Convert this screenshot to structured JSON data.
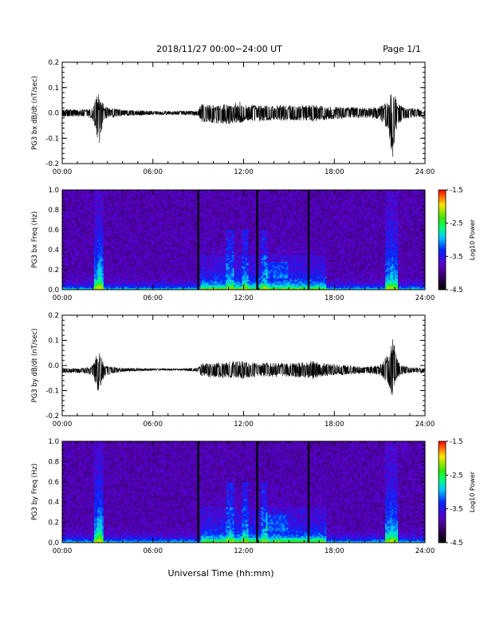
{
  "header": {
    "title": "2018/11/27  00:00−24:00 UT",
    "page": "Page 1/1"
  },
  "footer": {
    "xlabel": "Universal Time (hh:mm)"
  },
  "chart_data": [
    {
      "type": "line",
      "ylabel": "PG3 bx dB/dt (nT/sec)",
      "ylim": [
        -0.2,
        0.2
      ],
      "yticks": [
        "0.2",
        "0.1",
        "0.0",
        "-0.1",
        "-0.2"
      ],
      "xlim": [
        0,
        24
      ],
      "xticks": [
        "00:00",
        "06:00",
        "12:00",
        "18:00",
        "24:00"
      ],
      "series": [
        {
          "x": [
            0,
            1.5,
            2.0,
            2.2,
            2.4,
            2.6,
            2.8,
            3.2,
            4,
            6,
            8,
            9.0,
            9.2,
            10,
            11,
            11.8,
            12.2,
            13,
            14,
            15,
            16.3,
            16.6,
            17,
            18,
            19,
            20,
            21.0,
            21.6,
            21.8,
            22.0,
            22.2,
            22.5,
            23,
            24
          ],
          "y": [
            0.015,
            0.015,
            0.02,
            0.055,
            0.09,
            0.06,
            0.025,
            0.02,
            0.012,
            0.008,
            0.008,
            0.01,
            0.035,
            0.03,
            0.035,
            0.045,
            0.035,
            0.03,
            0.03,
            0.03,
            0.03,
            0.04,
            0.03,
            0.025,
            0.025,
            0.02,
            0.025,
            0.05,
            0.1,
            0.07,
            0.04,
            0.025,
            0.02,
            0.015
          ],
          "ymin": [
            -0.015,
            -0.015,
            -0.025,
            -0.06,
            -0.17,
            -0.08,
            -0.03,
            -0.02,
            -0.012,
            -0.008,
            -0.008,
            -0.012,
            -0.035,
            -0.04,
            -0.045,
            -0.04,
            -0.03,
            -0.035,
            -0.03,
            -0.03,
            -0.03,
            -0.035,
            -0.03,
            -0.025,
            -0.02,
            -0.02,
            -0.025,
            -0.07,
            -0.21,
            -0.1,
            -0.05,
            -0.03,
            -0.02,
            -0.015
          ]
        }
      ]
    },
    {
      "type": "heatmap",
      "ylabel": "PG3 bx Freq (Hz)",
      "ylim": [
        0.0,
        1.0
      ],
      "yticks": [
        "1.0",
        "0.8",
        "0.6",
        "0.4",
        "0.2",
        "0.0"
      ],
      "xlim": [
        0,
        24
      ],
      "xticks": [
        "00:00",
        "06:00",
        "12:00",
        "18:00",
        "24:00"
      ],
      "colorbar": {
        "label": "Log10 Power",
        "ticks": [
          "-1.5",
          "-2.5",
          "-3.5",
          "-4.5"
        ],
        "range": [
          -4.5,
          -1.5
        ]
      },
      "data_gaps_hours": [
        9.0,
        12.9,
        16.3
      ],
      "enhanced_bands_hours": [
        [
          2.1,
          2.7
        ],
        [
          9.2,
          17.5
        ],
        [
          21.4,
          22.2
        ]
      ]
    },
    {
      "type": "line",
      "ylabel": "PG3 by dB/dt (nT/sec)",
      "ylim": [
        -0.2,
        0.2
      ],
      "yticks": [
        "0.2",
        "0.1",
        "0.0",
        "-0.1",
        "-0.2"
      ],
      "xlim": [
        0,
        24
      ],
      "xticks": [
        "00:00",
        "06:00",
        "12:00",
        "18:00",
        "24:00"
      ],
      "series": [
        {
          "x": [
            0,
            1.5,
            2.0,
            2.2,
            2.4,
            2.6,
            2.8,
            3.2,
            4,
            6,
            8,
            9.0,
            9.2,
            10,
            11,
            11.8,
            12.2,
            13,
            14,
            15,
            16.3,
            16.6,
            17,
            18,
            19,
            20,
            21.0,
            21.6,
            21.8,
            22.0,
            22.2,
            22.5,
            23,
            24
          ],
          "y": [
            -0.01,
            -0.01,
            0.0,
            0.03,
            0.065,
            0.04,
            0.0,
            -0.005,
            -0.01,
            -0.012,
            -0.012,
            -0.01,
            0.01,
            0.01,
            0.015,
            0.02,
            0.015,
            0.01,
            0.01,
            0.01,
            0.015,
            0.02,
            0.01,
            0.005,
            0.0,
            -0.005,
            0.0,
            0.05,
            0.12,
            0.08,
            0.02,
            0.0,
            -0.008,
            -0.01
          ],
          "ymin": [
            -0.03,
            -0.03,
            -0.04,
            -0.07,
            -0.11,
            -0.08,
            -0.045,
            -0.035,
            -0.025,
            -0.02,
            -0.02,
            -0.025,
            -0.045,
            -0.05,
            -0.05,
            -0.055,
            -0.05,
            -0.045,
            -0.045,
            -0.045,
            -0.05,
            -0.055,
            -0.045,
            -0.04,
            -0.035,
            -0.03,
            -0.04,
            -0.08,
            -0.13,
            -0.09,
            -0.05,
            -0.035,
            -0.03,
            -0.03
          ]
        }
      ]
    },
    {
      "type": "heatmap",
      "ylabel": "PG3 by Freq (Hz)",
      "ylim": [
        0.0,
        1.0
      ],
      "yticks": [
        "1.0",
        "0.8",
        "0.6",
        "0.4",
        "0.2",
        "0.0"
      ],
      "xlim": [
        0,
        24
      ],
      "xticks": [
        "00:00",
        "06:00",
        "12:00",
        "18:00",
        "24:00"
      ],
      "colorbar": {
        "label": "Log10 Power",
        "ticks": [
          "-1.5",
          "-2.5",
          "-3.5",
          "-4.5"
        ],
        "range": [
          -4.5,
          -1.5
        ]
      },
      "data_gaps_hours": [
        9.0,
        12.9,
        16.3
      ],
      "enhanced_bands_hours": [
        [
          2.1,
          2.7
        ],
        [
          9.2,
          17.5
        ],
        [
          21.4,
          22.2
        ]
      ]
    }
  ]
}
